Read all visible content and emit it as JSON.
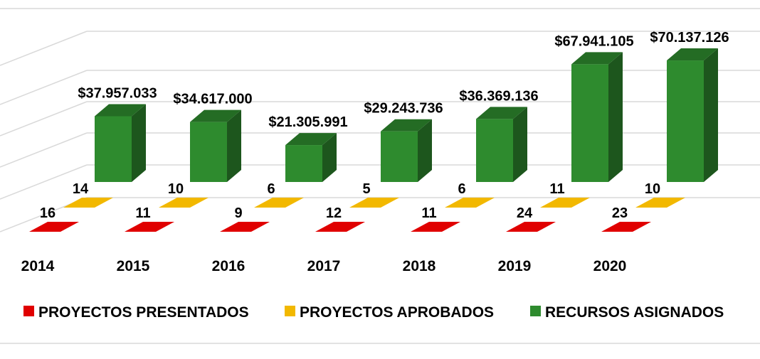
{
  "chart_data": {
    "type": "bar",
    "categories": [
      "2014",
      "2015",
      "2016",
      "2017",
      "2018",
      "2019",
      "2020"
    ],
    "series": [
      {
        "name": "PROYECTOS PRESENTADOS",
        "values": [
          16,
          11,
          9,
          12,
          11,
          24,
          23
        ],
        "color": "#e00000"
      },
      {
        "name": "PROYECTOS APROBADOS",
        "values": [
          14,
          10,
          6,
          5,
          6,
          11,
          10
        ],
        "color": "#f2b800"
      },
      {
        "name": "RECURSOS ASIGNADOS",
        "values": [
          37957033,
          34617000,
          21305991,
          29243736,
          36369136,
          67941105,
          70137126
        ],
        "labels": [
          "$37.957.033",
          "$34.617.000",
          "$21.305.991",
          "$29.243.736",
          "$36.369.136",
          "$67.941.105",
          "$70.137.126"
        ],
        "color": "#2e8b2e"
      }
    ],
    "legend_position": "bottom",
    "grid": true,
    "style": "3d"
  }
}
